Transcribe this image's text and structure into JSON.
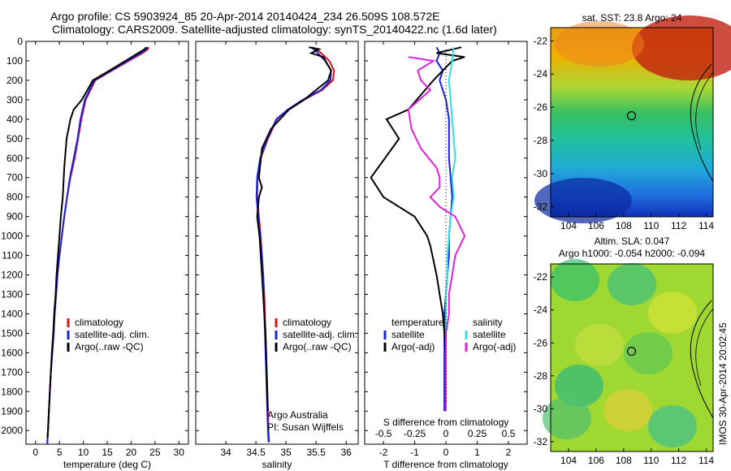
{
  "header": {
    "line1": "Argo profile: CS 5903924_85 20-Apr-2014 20140424_234 26.509S 108.572E",
    "line2": "Climatology: CARS2009. Satellite-adjusted climatology: synTS_20140422.nc (1.6d later)"
  },
  "colors": {
    "climatology": "#e0101a",
    "satellite": "#1a20e0",
    "argo": "#000000",
    "sat_diff": "#33e0e0",
    "argo_sal_diff": "#e020e0"
  },
  "depth_axis": {
    "ticks": [
      0,
      100,
      200,
      300,
      400,
      500,
      600,
      700,
      800,
      900,
      1000,
      1100,
      1200,
      1300,
      1400,
      1500,
      1600,
      1700,
      1800,
      1900,
      2000
    ],
    "ylim": [
      0,
      2070
    ]
  },
  "chart_data": [
    {
      "type": "line",
      "panel": "temperature",
      "xlabel": "temperature (deg C)",
      "xlim": [
        -2,
        32
      ],
      "xticks": [
        0,
        5,
        10,
        15,
        20,
        25,
        30
      ],
      "legend": [
        "climatology",
        "satellite-adj. clim.",
        "Argo(..raw -QC)"
      ],
      "legend_position": "bottom-right",
      "series": [
        {
          "name": "climatology",
          "color_key": "climatology",
          "x": [
            23.7,
            23.5,
            22.4,
            19.5,
            16.0,
            12.5,
            10.5,
            9.6,
            8.9,
            8.2,
            7.3,
            6.6,
            6.0,
            5.5,
            5.0,
            4.6,
            4.3,
            4.0,
            3.8,
            3.5,
            3.2,
            3.0,
            2.8,
            2.6,
            2.5,
            2.45
          ],
          "y": [
            30,
            40,
            60,
            100,
            150,
            200,
            300,
            400,
            500,
            600,
            700,
            800,
            900,
            1000,
            1100,
            1200,
            1300,
            1400,
            1500,
            1600,
            1700,
            1800,
            1900,
            2000,
            2040,
            2070
          ]
        },
        {
          "name": "satellite-adj. clim.",
          "color_key": "satellite",
          "x": [
            23.4,
            23.2,
            22.0,
            19.2,
            15.8,
            12.3,
            10.3,
            9.4,
            8.8,
            8.0,
            7.2,
            6.6,
            6.0,
            5.5,
            5.0,
            4.6,
            4.3,
            4.0,
            3.8,
            3.5,
            3.2,
            3.0,
            2.8,
            2.6,
            2.5,
            2.45
          ],
          "y": [
            30,
            40,
            60,
            100,
            150,
            200,
            300,
            400,
            500,
            600,
            700,
            800,
            900,
            1000,
            1100,
            1200,
            1300,
            1400,
            1500,
            1600,
            1700,
            1800,
            1900,
            2000,
            2040,
            2070
          ]
        },
        {
          "name": "Argo(..raw -QC)",
          "color_key": "argo",
          "x": [
            23.2,
            22.8,
            21.5,
            18.8,
            15.5,
            12.0,
            9.7,
            8.0,
            7.3,
            6.5,
            6.0,
            5.7,
            5.3,
            5.0,
            4.7,
            4.4,
            4.2,
            3.9,
            3.7,
            3.4,
            3.2,
            3.0,
            2.8,
            2.6,
            2.5
          ],
          "y": [
            30,
            40,
            60,
            100,
            150,
            200,
            300,
            350,
            400,
            500,
            650,
            800,
            900,
            1000,
            1100,
            1200,
            1300,
            1400,
            1500,
            1600,
            1700,
            1800,
            1900,
            2000,
            2040
          ]
        }
      ]
    },
    {
      "type": "line",
      "panel": "salinity",
      "xlabel": "salinity",
      "xlim": [
        33.5,
        36.2
      ],
      "xticks": [
        34,
        34.5,
        35,
        35.5,
        36
      ],
      "legend": [
        "climatology",
        "satellite-adj. clim.",
        "Argo(..raw -QC)"
      ],
      "legend_position": "bottom-right",
      "annotation": [
        "Argo Australia",
        "PI: Susan Wijffels"
      ],
      "series": [
        {
          "name": "climatology",
          "color_key": "climatology",
          "x": [
            35.45,
            35.55,
            35.72,
            35.8,
            35.78,
            35.6,
            35.3,
            35.05,
            34.85,
            34.7,
            34.58,
            34.53,
            34.52,
            34.55,
            34.58,
            34.6,
            34.62,
            34.64,
            34.65,
            34.66,
            34.67,
            34.68,
            34.69,
            34.7,
            34.71,
            34.72
          ],
          "y": [
            30,
            50,
            100,
            150,
            200,
            250,
            300,
            350,
            400,
            500,
            600,
            700,
            800,
            900,
            1000,
            1100,
            1200,
            1300,
            1400,
            1500,
            1600,
            1700,
            1800,
            1900,
            2000,
            2060
          ]
        },
        {
          "name": "satellite-adj. clim.",
          "color_key": "satellite",
          "x": [
            35.42,
            35.5,
            35.65,
            35.75,
            35.74,
            35.58,
            35.28,
            35.03,
            34.84,
            34.69,
            34.57,
            34.52,
            34.51,
            34.54,
            34.57,
            34.6,
            34.62,
            34.63,
            34.64,
            34.65,
            34.66,
            34.67,
            34.68,
            34.69,
            34.7,
            34.71
          ],
          "y": [
            30,
            50,
            100,
            150,
            200,
            250,
            300,
            350,
            400,
            500,
            600,
            700,
            800,
            900,
            1000,
            1100,
            1200,
            1300,
            1400,
            1500,
            1600,
            1700,
            1800,
            1900,
            2000,
            2060
          ]
        },
        {
          "name": "Argo(..raw -QC)",
          "color_key": "argo",
          "x": [
            35.38,
            35.55,
            35.42,
            35.62,
            35.75,
            35.7,
            35.5,
            35.3,
            35.05,
            34.75,
            34.6,
            34.55,
            34.6,
            34.55,
            34.52,
            34.56,
            34.58,
            34.6,
            34.62,
            34.64,
            34.66,
            34.67,
            34.68,
            34.69,
            34.7
          ],
          "y": [
            30,
            40,
            60,
            80,
            150,
            200,
            250,
            300,
            350,
            450,
            550,
            700,
            750,
            800,
            900,
            1000,
            1100,
            1200,
            1300,
            1400,
            1500,
            1600,
            1700,
            1800,
            1900
          ]
        }
      ]
    },
    {
      "type": "line",
      "panel": "difference",
      "xlabel_top": "S difference from climatology",
      "xlabel": "T difference from climatology",
      "xlim": [
        -2.6,
        2.6
      ],
      "xticks_bottom": [
        -2,
        -1,
        0,
        1,
        2
      ],
      "xticks_top": [
        "-0.5",
        "-0.25",
        "0",
        "0.25",
        "0.5"
      ],
      "legend": {
        "temperature": "temperature",
        "salinity": "salinity",
        "satellite": "satellite",
        "argo_adj": "Argo(-adj)"
      },
      "series": [
        {
          "name": "temperature satellite",
          "color_key": "satellite",
          "x": [
            -0.3,
            -0.2,
            -0.3,
            -0.1,
            -0.2,
            0.0,
            0.1,
            0.1,
            0.1,
            0.15,
            0.2,
            0.15,
            0.1,
            0.1,
            0.05,
            0.0,
            -0.05,
            -0.05,
            -0.05,
            -0.05,
            -0.05,
            -0.05
          ],
          "y": [
            30,
            60,
            100,
            150,
            200,
            300,
            400,
            500,
            600,
            700,
            800,
            900,
            1000,
            1100,
            1200,
            1300,
            1400,
            1500,
            1600,
            1700,
            1800,
            1900
          ]
        },
        {
          "name": "temperature Argo(-adj)",
          "color_key": "argo",
          "x": [
            0.5,
            -0.3,
            0.6,
            0.2,
            -0.4,
            -1.2,
            -1.9,
            -1.5,
            -2.4,
            -2.0,
            -1.0,
            -0.6,
            -0.5,
            -0.3,
            -0.2,
            -0.1,
            -0.05,
            0.0,
            0.0,
            0.0,
            0.0
          ],
          "y": [
            30,
            60,
            80,
            100,
            200,
            350,
            400,
            500,
            700,
            800,
            900,
            1000,
            1050,
            1200,
            1300,
            1400,
            1500,
            1600,
            1700,
            1800,
            1900
          ]
        },
        {
          "name": "salinity satellite",
          "color_key": "sat_diff",
          "x": [
            0.25,
            0.2,
            0.1,
            0.15,
            0.2,
            0.25,
            0.3,
            0.2,
            0.25,
            0.15,
            0.1,
            0.05,
            0.05,
            0.0,
            0.0,
            0.0,
            0.0,
            0.0,
            0.0
          ],
          "y": [
            30,
            100,
            200,
            300,
            400,
            500,
            600,
            700,
            800,
            900,
            1000,
            1100,
            1200,
            1300,
            1400,
            1500,
            1600,
            1700,
            1900
          ]
        },
        {
          "name": "salinity Argo(-adj)",
          "color_key": "argo_sal_diff",
          "x": [
            -1.2,
            -0.4,
            -0.9,
            -0.8,
            -0.5,
            -1.2,
            -1.1,
            -0.8,
            -0.3,
            -0.2,
            -0.2,
            -0.5,
            -0.2,
            0.3,
            0.6,
            0.3,
            0.2,
            0.1,
            0.1,
            0.0,
            0.0,
            0.0,
            0.0
          ],
          "y": [
            80,
            100,
            150,
            200,
            250,
            350,
            450,
            550,
            650,
            700,
            750,
            800,
            850,
            900,
            1000,
            1100,
            1200,
            1300,
            1400,
            1500,
            1600,
            1700,
            1900
          ]
        }
      ]
    }
  ],
  "maps": {
    "sst": {
      "title": "sat. SST: 23.8 Argo: 24",
      "yticks": [
        "-22",
        "-24",
        "-26",
        "-28",
        "-30",
        "-32"
      ],
      "xticks": [
        "104",
        "106",
        "108",
        "110",
        "112",
        "114"
      ]
    },
    "sla": {
      "title_line1": "Altim. SLA: 0.047",
      "title_line2": "Argo h1000: -0.054 h2000: -0.094",
      "yticks": [
        "-22",
        "-24",
        "-26",
        "-28",
        "-30",
        "-32"
      ],
      "xticks": [
        "104",
        "106",
        "108",
        "110",
        "112",
        "114"
      ]
    },
    "float_position": {
      "lon": 108.572,
      "lat": -26.509
    }
  },
  "watermark": "IMOS 30-Apr-2014 20:02:45"
}
